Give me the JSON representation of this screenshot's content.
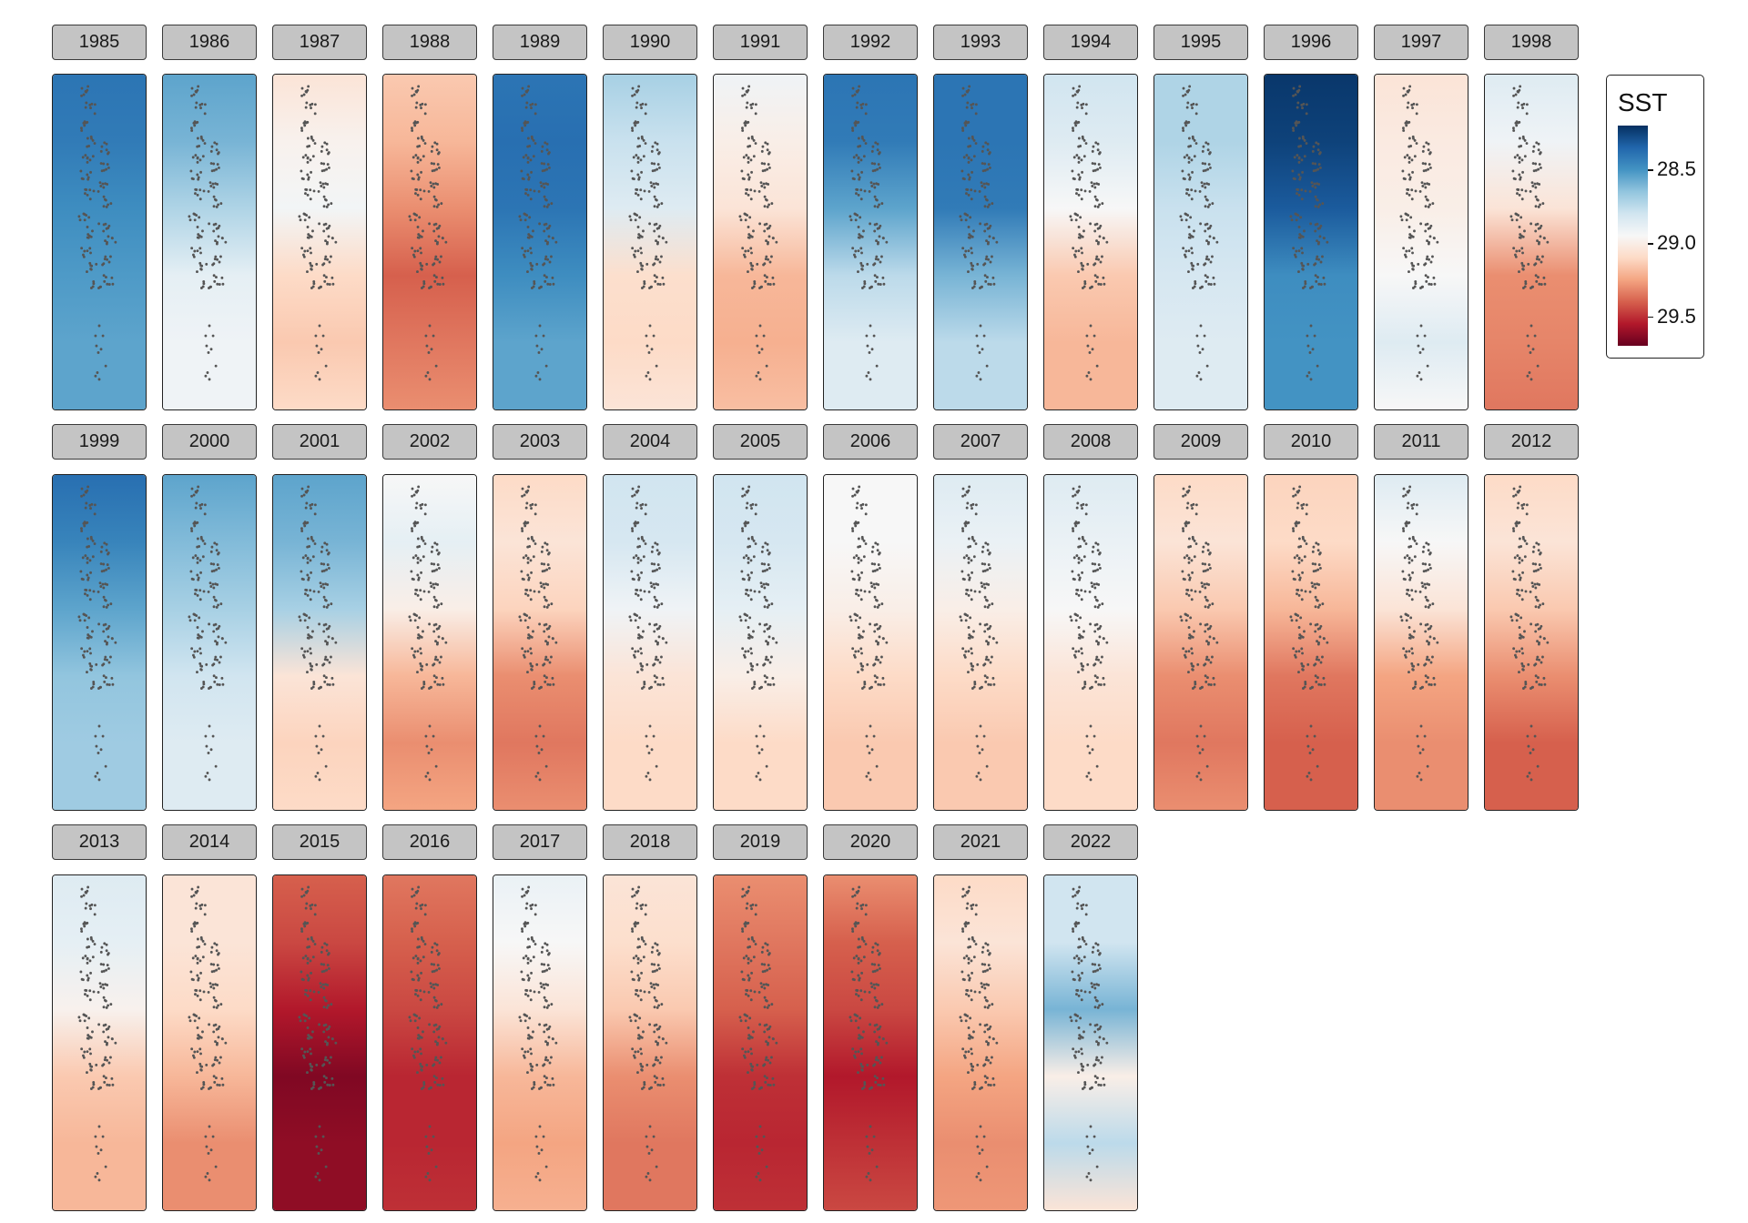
{
  "chart_data": {
    "type": "heatmap",
    "description_kind": "faceted small-multiple maps",
    "legend": {
      "title": "SST",
      "ticks": [
        28.5,
        29.0,
        29.5
      ],
      "tick_labels": [
        "28.5",
        "29.0",
        "29.5"
      ],
      "range": [
        28.2,
        29.7
      ],
      "colormap": [
        "#053061",
        "#2166ac",
        "#4393c3",
        "#92c5de",
        "#d1e5f0",
        "#f7f7f7",
        "#fddbc7",
        "#f4a582",
        "#d6604d",
        "#b2182b",
        "#67001f"
      ]
    },
    "facets": [
      {
        "year": "1985",
        "sst": [
          28.4,
          28.42,
          28.48,
          28.52,
          28.55,
          28.55
        ]
      },
      {
        "year": "1986",
        "sst": [
          28.55,
          28.6,
          28.72,
          28.88,
          28.92,
          28.92
        ]
      },
      {
        "year": "1987",
        "sst": [
          29.05,
          28.98,
          28.93,
          29.1,
          29.15,
          29.1
        ]
      },
      {
        "year": "1988",
        "sst": [
          29.15,
          29.2,
          29.3,
          29.4,
          29.35,
          29.3
        ]
      },
      {
        "year": "1989",
        "sst": [
          28.4,
          28.38,
          28.4,
          28.48,
          28.55,
          28.55
        ]
      },
      {
        "year": "1990",
        "sst": [
          28.7,
          28.78,
          28.85,
          29.08,
          29.1,
          29.05
        ]
      },
      {
        "year": "1991",
        "sst": [
          28.92,
          29.0,
          29.05,
          29.2,
          29.22,
          29.18
        ]
      },
      {
        "year": "1992",
        "sst": [
          28.4,
          28.42,
          28.55,
          28.75,
          28.85,
          28.85
        ]
      },
      {
        "year": "1993",
        "sst": [
          28.4,
          28.4,
          28.42,
          28.6,
          28.75,
          28.75
        ]
      },
      {
        "year": "1994",
        "sst": [
          28.8,
          28.85,
          28.95,
          29.15,
          29.2,
          29.2
        ]
      },
      {
        "year": "1995",
        "sst": [
          28.72,
          28.72,
          28.78,
          28.82,
          28.85,
          28.85
        ]
      },
      {
        "year": "1996",
        "sst": [
          28.22,
          28.25,
          28.32,
          28.48,
          28.5,
          28.5
        ]
      },
      {
        "year": "1997",
        "sst": [
          29.05,
          29.02,
          29.0,
          28.95,
          28.85,
          28.95
        ]
      },
      {
        "year": "1998",
        "sst": [
          28.85,
          28.92,
          29.05,
          29.3,
          29.32,
          29.35
        ]
      },
      {
        "year": "1999",
        "sst": [
          28.38,
          28.45,
          28.55,
          28.65,
          28.68,
          28.68
        ]
      },
      {
        "year": "2000",
        "sst": [
          28.55,
          28.62,
          28.7,
          28.8,
          28.85,
          28.85
        ]
      },
      {
        "year": "2001",
        "sst": [
          28.55,
          28.6,
          28.7,
          29.05,
          29.12,
          29.1
        ]
      },
      {
        "year": "2002",
        "sst": [
          28.95,
          28.88,
          29.0,
          29.2,
          29.3,
          29.25
        ]
      },
      {
        "year": "2003",
        "sst": [
          29.1,
          29.05,
          29.12,
          29.3,
          29.35,
          29.3
        ]
      },
      {
        "year": "2004",
        "sst": [
          28.8,
          28.82,
          28.92,
          29.05,
          29.1,
          29.1
        ]
      },
      {
        "year": "2005",
        "sst": [
          28.8,
          28.82,
          28.88,
          29.0,
          29.1,
          29.1
        ]
      },
      {
        "year": "2006",
        "sst": [
          28.95,
          28.95,
          29.0,
          29.1,
          29.15,
          29.15
        ]
      },
      {
        "year": "2007",
        "sst": [
          28.85,
          28.9,
          29.0,
          29.1,
          29.15,
          29.15
        ]
      },
      {
        "year": "2008",
        "sst": [
          28.85,
          28.9,
          28.95,
          29.05,
          29.1,
          29.1
        ]
      },
      {
        "year": "2009",
        "sst": [
          29.1,
          29.05,
          29.15,
          29.3,
          29.35,
          29.3
        ]
      },
      {
        "year": "2010",
        "sst": [
          29.12,
          29.1,
          29.2,
          29.35,
          29.4,
          29.4
        ]
      },
      {
        "year": "2011",
        "sst": [
          28.85,
          28.95,
          29.05,
          29.25,
          29.3,
          29.3
        ]
      },
      {
        "year": "2012",
        "sst": [
          29.1,
          29.05,
          29.15,
          29.3,
          29.4,
          29.4
        ]
      },
      {
        "year": "2013",
        "sst": [
          28.85,
          28.88,
          28.98,
          29.15,
          29.2,
          29.2
        ]
      },
      {
        "year": "2014",
        "sst": [
          29.05,
          29.05,
          29.1,
          29.2,
          29.3,
          29.3
        ]
      },
      {
        "year": "2015",
        "sst": [
          29.4,
          29.45,
          29.55,
          29.65,
          29.62,
          29.62
        ]
      },
      {
        "year": "2016",
        "sst": [
          29.35,
          29.4,
          29.45,
          29.52,
          29.52,
          29.5
        ]
      },
      {
        "year": "2017",
        "sst": [
          28.9,
          28.95,
          29.05,
          29.2,
          29.25,
          29.22
        ]
      },
      {
        "year": "2018",
        "sst": [
          29.05,
          29.08,
          29.15,
          29.3,
          29.35,
          29.35
        ]
      },
      {
        "year": "2019",
        "sst": [
          29.3,
          29.35,
          29.4,
          29.5,
          29.52,
          29.5
        ]
      },
      {
        "year": "2020",
        "sst": [
          29.3,
          29.4,
          29.45,
          29.55,
          29.5,
          29.45
        ]
      },
      {
        "year": "2021",
        "sst": [
          29.1,
          29.05,
          29.15,
          29.25,
          29.3,
          29.28
        ]
      },
      {
        "year": "2022",
        "sst": [
          28.8,
          28.8,
          28.6,
          29.0,
          28.75,
          29.05
        ]
      }
    ]
  }
}
